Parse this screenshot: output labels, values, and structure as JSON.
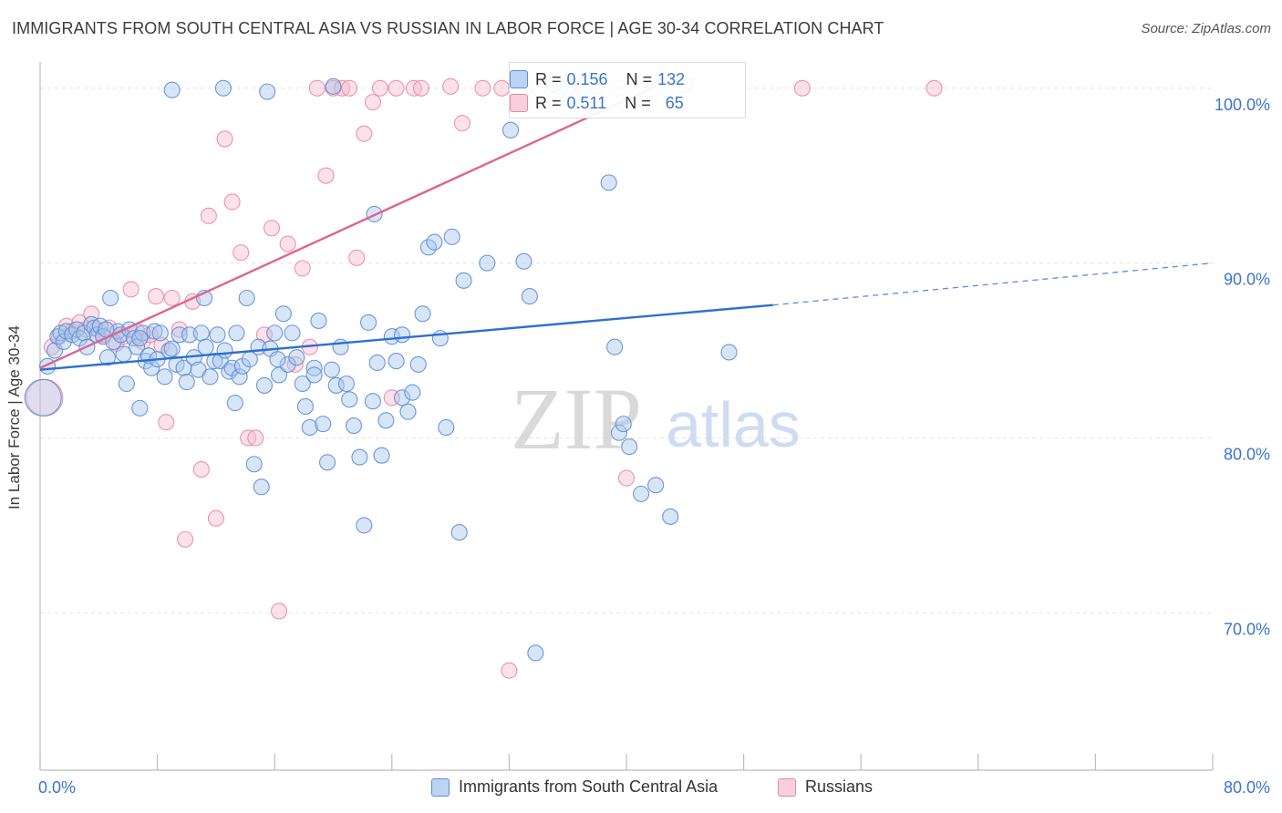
{
  "title": "IMMIGRANTS FROM SOUTH CENTRAL ASIA VS RUSSIAN IN LABOR FORCE | AGE 30-34 CORRELATION CHART",
  "source": "Source: ZipAtlas.com",
  "watermark": {
    "zip": "ZIP",
    "atlas": "atlas"
  },
  "colors": {
    "blue_fill": "#a9c5ee",
    "blue_stroke": "#5b8ed6",
    "blue_line": "#2e6fd0",
    "pink_fill": "#f6bccd",
    "pink_stroke": "#e889a6",
    "pink_line": "#e0648f",
    "axis_text": "#3b74cc",
    "grid": "#e3e3e3"
  },
  "stats": {
    "rows": [
      {
        "r_label": "R = ",
        "r_value": "0.156",
        "n_label": "N = ",
        "n_value": "132",
        "series": "blue"
      },
      {
        "r_label": "R = ",
        "r_value": "0.511",
        "n_label": "N = ",
        "n_value": "65",
        "series": "pink"
      }
    ]
  },
  "legend": {
    "items": [
      {
        "label": "Immigrants from South Central Asia",
        "series": "blue"
      },
      {
        "label": "Russians",
        "series": "pink"
      }
    ]
  },
  "chart_data": {
    "type": "scatter",
    "title": "IMMIGRANTS FROM SOUTH CENTRAL ASIA VS RUSSIAN IN LABOR FORCE | AGE 30-34 CORRELATION CHART",
    "xlabel": "",
    "ylabel": "In Labor Force | Age 30-34",
    "xlim": [
      0,
      80
    ],
    "ylim": [
      61,
      101.5
    ],
    "x_ticks": [
      0,
      80
    ],
    "x_tick_labels": [
      "0.0%",
      "80.0%"
    ],
    "y_ticks": [
      70,
      80,
      90,
      100
    ],
    "y_tick_labels": [
      "70.0%",
      "80.0%",
      "90.0%",
      "100.0%"
    ],
    "grid": "horizontal dashed",
    "legend_position": "bottom-center",
    "series": [
      {
        "name": "Immigrants from South Central Asia",
        "color": "blue",
        "trend": {
          "x": [
            0,
            50
          ],
          "y": [
            83.9,
            87.6
          ],
          "dashed_extension_to_x": 80,
          "dashed_extension_y": 90.0
        },
        "points": [
          [
            0.2,
            82.3,
            "L"
          ],
          [
            0.5,
            84.1
          ],
          [
            1.0,
            85.0
          ],
          [
            1.2,
            85.8
          ],
          [
            1.4,
            86.0
          ],
          [
            1.6,
            85.5
          ],
          [
            1.8,
            86.1
          ],
          [
            2.2,
            85.9
          ],
          [
            2.5,
            86.2
          ],
          [
            2.7,
            85.7
          ],
          [
            3.0,
            86.0
          ],
          [
            3.2,
            85.2
          ],
          [
            3.5,
            86.5
          ],
          [
            3.7,
            86.3
          ],
          [
            3.9,
            85.9
          ],
          [
            4.1,
            86.4
          ],
          [
            4.3,
            85.8
          ],
          [
            4.6,
            84.6
          ],
          [
            4.8,
            88.0
          ],
          [
            5.0,
            85.5
          ],
          [
            5.3,
            86.1
          ],
          [
            5.5,
            85.9
          ],
          [
            5.7,
            84.8
          ],
          [
            5.9,
            83.1
          ],
          [
            6.1,
            86.2
          ],
          [
            6.4,
            85.7
          ],
          [
            6.6,
            85.2
          ],
          [
            6.8,
            81.7
          ],
          [
            7.0,
            86.0
          ],
          [
            7.2,
            84.4
          ],
          [
            7.4,
            84.7
          ],
          [
            7.6,
            84.0
          ],
          [
            7.8,
            86.1
          ],
          [
            8.0,
            84.5
          ],
          [
            8.2,
            86.0
          ],
          [
            8.5,
            83.5
          ],
          [
            8.8,
            85.0
          ],
          [
            9.0,
            85.1
          ],
          [
            9.3,
            84.2
          ],
          [
            9.5,
            85.9
          ],
          [
            9.8,
            84.0
          ],
          [
            10.0,
            83.2
          ],
          [
            10.2,
            85.9
          ],
          [
            10.5,
            84.6
          ],
          [
            10.8,
            83.9
          ],
          [
            11.0,
            86.0
          ],
          [
            11.3,
            85.2
          ],
          [
            11.6,
            83.5
          ],
          [
            11.9,
            84.4
          ],
          [
            12.1,
            85.9
          ],
          [
            12.3,
            84.4
          ],
          [
            12.6,
            85.0
          ],
          [
            12.9,
            83.8
          ],
          [
            13.1,
            84.0
          ],
          [
            13.3,
            82.0
          ],
          [
            13.6,
            83.5
          ],
          [
            13.8,
            84.1
          ],
          [
            14.1,
            88.0
          ],
          [
            14.3,
            84.5
          ],
          [
            14.6,
            78.5
          ],
          [
            14.9,
            85.2
          ],
          [
            15.1,
            77.2
          ],
          [
            15.3,
            83.0
          ],
          [
            15.7,
            85.1
          ],
          [
            16.0,
            86.0
          ],
          [
            16.3,
            83.6
          ],
          [
            16.6,
            87.1
          ],
          [
            16.9,
            84.2
          ],
          [
            17.2,
            86.0
          ],
          [
            17.5,
            84.6
          ],
          [
            17.9,
            83.1
          ],
          [
            18.1,
            81.8
          ],
          [
            18.4,
            80.6
          ],
          [
            18.7,
            84.0
          ],
          [
            19.0,
            86.7
          ],
          [
            19.3,
            80.8
          ],
          [
            19.6,
            78.6
          ],
          [
            19.9,
            83.9
          ],
          [
            20.2,
            83.0
          ],
          [
            20.5,
            85.2
          ],
          [
            20.9,
            83.1
          ],
          [
            21.1,
            82.2
          ],
          [
            21.4,
            80.7
          ],
          [
            21.8,
            78.9
          ],
          [
            22.1,
            75.0
          ],
          [
            22.4,
            86.6
          ],
          [
            22.7,
            82.1
          ],
          [
            23.0,
            84.3
          ],
          [
            23.3,
            79.0
          ],
          [
            23.6,
            81.0
          ],
          [
            24.0,
            85.8
          ],
          [
            24.3,
            84.4
          ],
          [
            24.7,
            82.3
          ],
          [
            25.1,
            81.5
          ],
          [
            25.4,
            82.6
          ],
          [
            25.8,
            84.2
          ],
          [
            26.1,
            87.1
          ],
          [
            26.5,
            90.9
          ],
          [
            26.9,
            91.2
          ],
          [
            27.3,
            85.7
          ],
          [
            27.7,
            80.6
          ],
          [
            28.1,
            91.5
          ],
          [
            28.6,
            74.6
          ],
          [
            28.9,
            89.0
          ],
          [
            30.5,
            90.0
          ],
          [
            32.1,
            97.6
          ],
          [
            33.0,
            90.1
          ],
          [
            33.4,
            88.1
          ],
          [
            33.8,
            67.7
          ],
          [
            35.0,
            100.2
          ],
          [
            35.5,
            100.1
          ],
          [
            36.0,
            100.1
          ],
          [
            37.0,
            100.0
          ],
          [
            38.0,
            100.1
          ],
          [
            38.8,
            94.6
          ],
          [
            39.2,
            85.2
          ],
          [
            39.5,
            80.3
          ],
          [
            39.8,
            80.8
          ],
          [
            40.2,
            79.5
          ],
          [
            41.0,
            76.8
          ],
          [
            42.0,
            77.3
          ],
          [
            43.0,
            75.5
          ],
          [
            44.0,
            100.2
          ],
          [
            47.0,
            84.9
          ],
          [
            20.0,
            100.1
          ],
          [
            15.5,
            99.8
          ],
          [
            9.0,
            99.9
          ],
          [
            12.5,
            100.0
          ],
          [
            4.5,
            86.2
          ],
          [
            6.8,
            85.7
          ],
          [
            22.8,
            92.8
          ],
          [
            24.7,
            85.9
          ],
          [
            18.7,
            83.6
          ],
          [
            16.2,
            84.5
          ],
          [
            11.2,
            88.0
          ],
          [
            13.4,
            86.0
          ]
        ]
      },
      {
        "name": "Russians",
        "color": "pink",
        "trend": {
          "x": [
            0,
            42
          ],
          "y": [
            84.0,
            100.1
          ]
        },
        "points": [
          [
            0.3,
            82.3,
            "L"
          ],
          [
            0.8,
            85.2
          ],
          [
            1.3,
            85.8
          ],
          [
            1.8,
            86.4
          ],
          [
            2.2,
            86.1
          ],
          [
            2.7,
            86.6
          ],
          [
            3.1,
            86.2
          ],
          [
            3.5,
            87.1
          ],
          [
            3.9,
            86.2
          ],
          [
            4.3,
            85.9
          ],
          [
            4.7,
            86.3
          ],
          [
            5.2,
            85.4
          ],
          [
            5.7,
            85.8
          ],
          [
            6.2,
            88.5
          ],
          [
            6.6,
            86.1
          ],
          [
            7.0,
            85.5
          ],
          [
            7.5,
            85.9
          ],
          [
            7.9,
            88.1
          ],
          [
            8.3,
            85.3
          ],
          [
            8.6,
            80.9
          ],
          [
            9.0,
            88.0
          ],
          [
            9.5,
            86.2
          ],
          [
            9.9,
            74.2
          ],
          [
            10.4,
            87.8
          ],
          [
            11.0,
            78.2
          ],
          [
            11.5,
            92.7
          ],
          [
            12.0,
            75.4
          ],
          [
            12.6,
            97.1
          ],
          [
            13.1,
            93.5
          ],
          [
            13.7,
            90.6
          ],
          [
            14.2,
            80.0
          ],
          [
            14.7,
            80.0
          ],
          [
            15.3,
            85.9
          ],
          [
            15.8,
            92.0
          ],
          [
            16.3,
            70.1
          ],
          [
            16.9,
            91.1
          ],
          [
            17.4,
            84.2
          ],
          [
            17.9,
            89.7
          ],
          [
            18.4,
            85.2
          ],
          [
            18.9,
            100.0
          ],
          [
            19.5,
            95.0
          ],
          [
            20.0,
            100.0
          ],
          [
            20.6,
            100.0
          ],
          [
            21.1,
            100.0
          ],
          [
            21.6,
            90.3
          ],
          [
            22.1,
            97.4
          ],
          [
            22.7,
            99.2
          ],
          [
            23.2,
            100.0
          ],
          [
            24.0,
            82.3
          ],
          [
            24.3,
            100.0
          ],
          [
            25.5,
            100.0
          ],
          [
            26.0,
            100.0
          ],
          [
            28.0,
            100.1
          ],
          [
            28.8,
            98.0
          ],
          [
            30.2,
            100.0
          ],
          [
            31.5,
            100.0
          ],
          [
            32.5,
            100.0
          ],
          [
            33.2,
            100.0
          ],
          [
            34.0,
            100.0
          ],
          [
            36.5,
            100.1
          ],
          [
            32.0,
            66.7
          ],
          [
            39.5,
            100.0
          ],
          [
            40.0,
            77.7
          ],
          [
            52.0,
            100.0
          ],
          [
            61.0,
            100.0
          ]
        ]
      }
    ]
  }
}
